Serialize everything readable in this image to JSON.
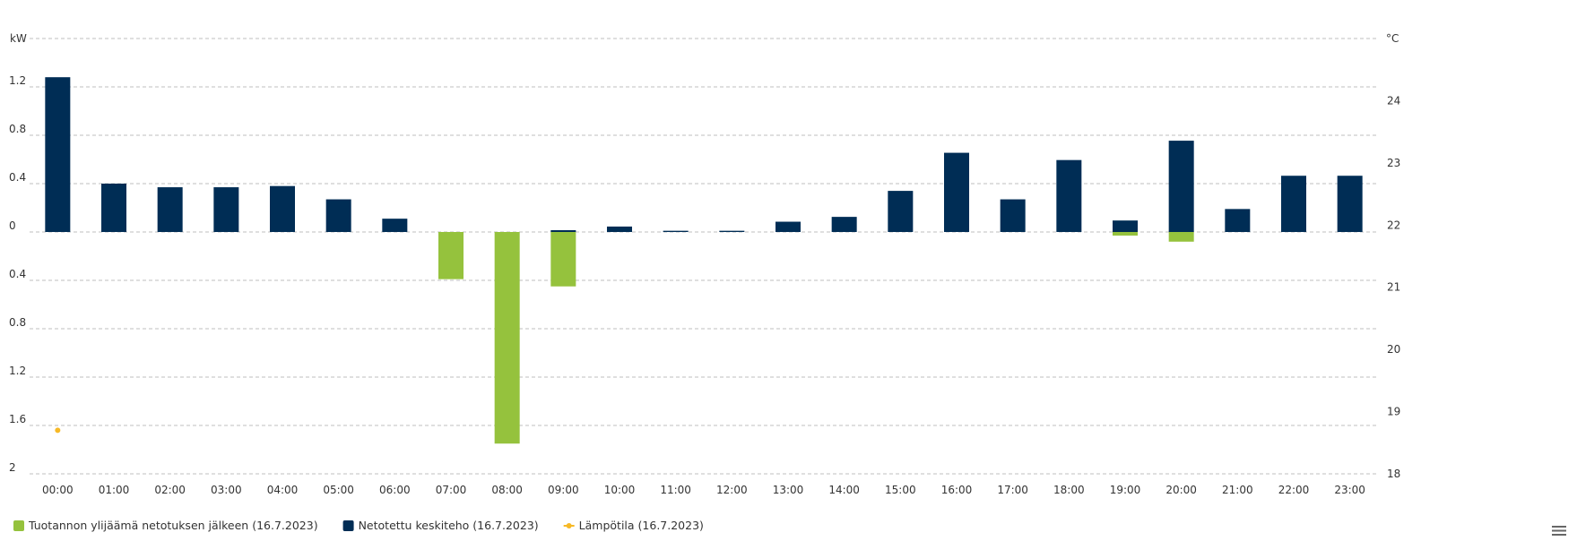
{
  "chart_data": {
    "type": "bar",
    "categories": [
      "00:00",
      "01:00",
      "02:00",
      "03:00",
      "04:00",
      "05:00",
      "06:00",
      "07:00",
      "08:00",
      "09:00",
      "10:00",
      "11:00",
      "12:00",
      "13:00",
      "14:00",
      "15:00",
      "16:00",
      "17:00",
      "18:00",
      "19:00",
      "20:00",
      "21:00",
      "22:00",
      "23:00"
    ],
    "y_left": {
      "unit_label": "kW",
      "range": [
        -2,
        1.6
      ],
      "tick_values": [
        1.2,
        0.8,
        0.4,
        0,
        -0.4,
        -0.8,
        -1.2,
        -1.6,
        -2
      ],
      "tick_labels": [
        "1.2",
        "0.8",
        "0.4",
        "0",
        "0.4",
        "0.8",
        "1.2",
        "1.6",
        "2"
      ]
    },
    "y_right": {
      "unit_label": "°C",
      "range": [
        18,
        25
      ],
      "tick_labels": [
        "24",
        "23",
        "22",
        "21",
        "20",
        "19",
        "18"
      ],
      "tick_values": [
        24,
        23,
        22,
        21,
        20,
        19,
        18
      ]
    },
    "series": [
      {
        "name": "Tuotannon ylijäämä netotuksen jälkeen (16.7.2023)",
        "color": "#95c23d",
        "axis": "left",
        "kind": "bar",
        "values": [
          0,
          0,
          0,
          0,
          0,
          0,
          0,
          -0.39,
          -1.75,
          -0.45,
          0,
          0,
          0,
          0,
          0,
          0,
          0,
          0,
          0,
          -0.03,
          -0.08,
          0,
          0,
          0
        ]
      },
      {
        "name": "Netotettu keskiteho (16.7.2023)",
        "color": "#002d55",
        "axis": "left",
        "kind": "bar",
        "values": [
          1.28,
          0.4,
          0.37,
          0.37,
          0.38,
          0.27,
          0.11,
          0,
          0,
          0.015,
          0.045,
          0.01,
          0.01,
          0.085,
          0.125,
          0.34,
          0.655,
          0.27,
          0.595,
          0.095,
          0.755,
          0.19,
          0.465,
          0.465
        ]
      },
      {
        "name": "Lämpötila (16.7.2023)",
        "color": "#f7b926",
        "axis": "right",
        "kind": "scatter",
        "points": [
          {
            "x": "00:00",
            "y": 18.7
          }
        ]
      }
    ],
    "grid": true,
    "legend": "bottom-left"
  },
  "ui": {
    "menu_icon": "hamburger-menu-icon"
  }
}
